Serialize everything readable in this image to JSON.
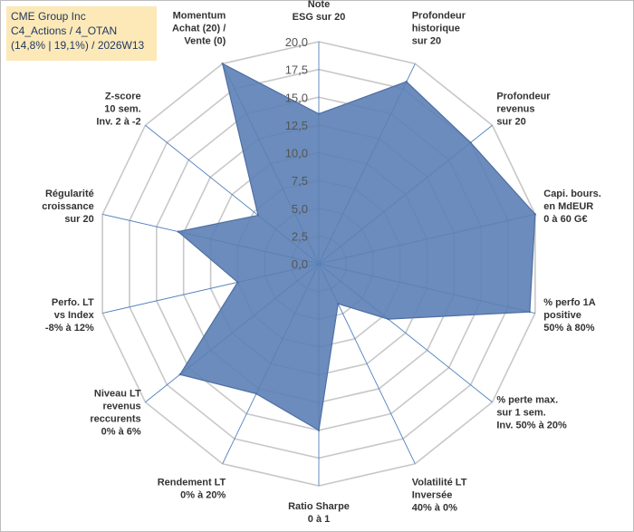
{
  "title_box": {
    "line1": "CME Group Inc",
    "line2": "C4_Actions / 4_OTAN",
    "line3": "(14,8% | 19,1%) / 2026W13"
  },
  "chart_data": {
    "type": "radar",
    "rmin": 0,
    "rmax": 20,
    "ticks": [
      "0,0",
      "2,5",
      "5,0",
      "7,5",
      "10,0",
      "12,5",
      "15,0",
      "17,5",
      "20,0"
    ],
    "axes": [
      [
        "Note",
        "ESG sur 20"
      ],
      [
        "Profondeur",
        "historique",
        "sur 20"
      ],
      [
        "Profondeur",
        "revenus",
        "sur 20"
      ],
      [
        "Capi. bours.",
        "en MdEUR",
        "0 à 60 G€"
      ],
      [
        "% perfo 1A",
        "positive",
        "50% à 80%"
      ],
      [
        "% perte max.",
        "sur 1 sem.",
        "Inv. 50% à 20%"
      ],
      [
        "Volatilité LT",
        "Inversée",
        "40% à 0%"
      ],
      [
        "Ratio Sharpe",
        "0 à 1"
      ],
      [
        "Rendement LT",
        "0% à 20%"
      ],
      [
        "Niveau LT",
        "revenus",
        "reccurents",
        "0% à 6%"
      ],
      [
        "Perfo. LT",
        "vs Index",
        "-8% à 12%"
      ],
      [
        "Régularité",
        "croissance",
        "sur 20"
      ],
      [
        "Z-score",
        "10 sem.",
        "Inv. 2 à -2"
      ],
      [
        "Momentum",
        "Achat (20) /",
        "Vente (0)"
      ]
    ],
    "values": [
      13.5,
      18.2,
      17.5,
      20.0,
      19.5,
      8.0,
      4.0,
      15.0,
      13.0,
      16.0,
      7.5,
      13.0,
      7.0,
      20.0
    ],
    "colors": {
      "fill": "#5b7fb5",
      "stroke": "#4f6fa3",
      "grid": "#c8c8c8",
      "spoke": "#4f81bd"
    }
  }
}
